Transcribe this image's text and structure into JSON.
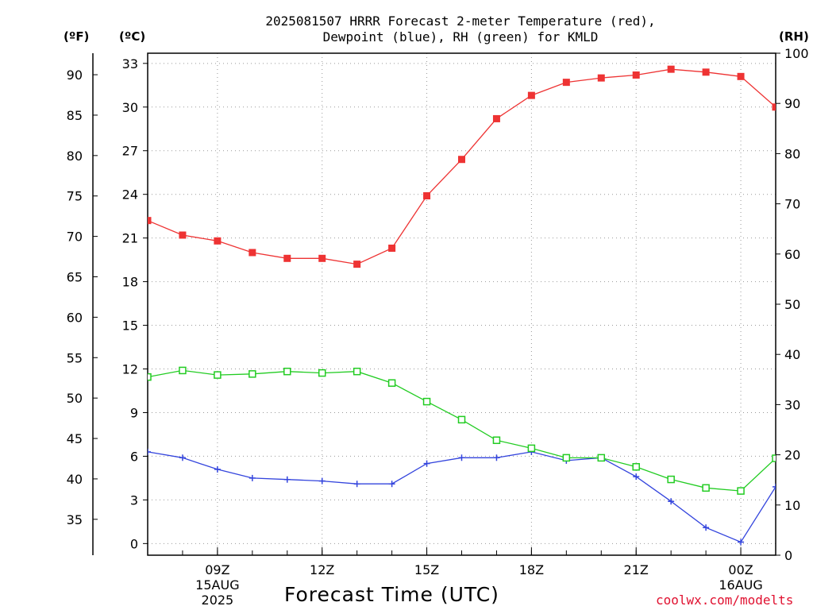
{
  "title": {
    "line1": "2025081507 HRRR Forecast 2-meter Temperature (red),",
    "line2": "Dewpoint (blue), RH (green) for KMLD"
  },
  "units": {
    "fahrenheit": "(ºF)",
    "celsius": "(ºC)",
    "rh": "(RH)"
  },
  "xlabel": "Forecast Time (UTC)",
  "credit": "coolwx.com/modelts",
  "colors": {
    "temperature": "#ee3333",
    "dewpoint": "#3344dd",
    "rh": "#22cc22",
    "grid": "#999999",
    "credit": "#e0102f"
  },
  "chart_data": {
    "type": "line",
    "x": [
      "07Z",
      "08Z",
      "09Z",
      "10Z",
      "11Z",
      "12Z",
      "13Z",
      "14Z",
      "15Z",
      "16Z",
      "17Z",
      "18Z",
      "19Z",
      "20Z",
      "21Z",
      "22Z",
      "23Z",
      "00Z",
      "01Z"
    ],
    "x_tick_labels": [
      {
        "hour": "09Z",
        "line2": "15AUG",
        "line3": "2025"
      },
      {
        "hour": "12Z",
        "line2": "",
        "line3": ""
      },
      {
        "hour": "15Z",
        "line2": "",
        "line3": ""
      },
      {
        "hour": "18Z",
        "line2": "",
        "line3": ""
      },
      {
        "hour": "21Z",
        "line2": "",
        "line3": ""
      },
      {
        "hour": "00Z",
        "line2": "16AUG",
        "line3": ""
      }
    ],
    "series": [
      {
        "name": "Temperature",
        "axis": "celsius",
        "marker": "filled-square",
        "color": "#ee3333",
        "values": [
          22.2,
          21.2,
          20.8,
          20.0,
          19.6,
          19.6,
          19.2,
          20.3,
          23.9,
          26.4,
          29.2,
          30.8,
          31.7,
          32.0,
          32.2,
          32.6,
          32.4,
          32.1,
          30.0
        ]
      },
      {
        "name": "Dewpoint",
        "axis": "celsius",
        "marker": "plus",
        "color": "#3344dd",
        "values": [
          6.3,
          5.9,
          5.1,
          4.5,
          4.4,
          4.3,
          4.1,
          4.1,
          5.5,
          5.9,
          5.9,
          6.3,
          5.7,
          5.9,
          4.6,
          2.9,
          1.1,
          0.1,
          3.9
        ]
      },
      {
        "name": "RH",
        "axis": "rh",
        "marker": "open-square",
        "color": "#22cc22",
        "values": [
          35.5,
          36.8,
          35.9,
          36.1,
          36.6,
          36.3,
          36.6,
          34.3,
          30.6,
          27.0,
          22.9,
          21.3,
          19.4,
          19.4,
          17.6,
          15.1,
          13.4,
          12.8,
          19.3
        ]
      }
    ],
    "celsius_axis": {
      "ticks": [
        0,
        3,
        6,
        9,
        12,
        15,
        18,
        21,
        24,
        27,
        30,
        33
      ],
      "range": [
        -0.8,
        33.7
      ]
    },
    "fahrenheit_axis": {
      "ticks": [
        35,
        40,
        45,
        50,
        55,
        60,
        65,
        70,
        75,
        80,
        85,
        90
      ]
    },
    "rh_axis": {
      "ticks": [
        0,
        10,
        20,
        30,
        40,
        50,
        60,
        70,
        80,
        90,
        100
      ],
      "range": [
        0,
        100
      ]
    },
    "grid": true
  }
}
